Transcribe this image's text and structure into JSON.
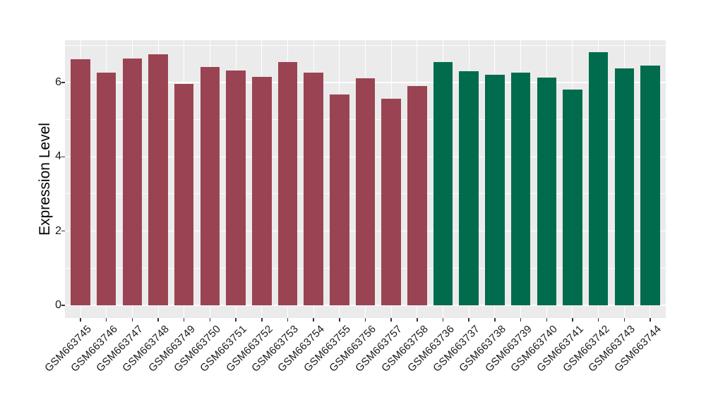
{
  "chart_data": {
    "type": "bar",
    "title": "",
    "ylabel": "Expression Level",
    "xlabel": "",
    "categories": [
      "GSM663745",
      "GSM663746",
      "GSM663747",
      "GSM663748",
      "GSM663749",
      "GSM663750",
      "GSM663751",
      "GSM663752",
      "GSM663753",
      "GSM663754",
      "GSM663755",
      "GSM663756",
      "GSM663757",
      "GSM663758",
      "GSM663736",
      "GSM663737",
      "GSM663738",
      "GSM663739",
      "GSM663740",
      "GSM663741",
      "GSM663742",
      "GSM663743",
      "GSM663744"
    ],
    "values": [
      6.62,
      6.27,
      6.64,
      6.76,
      5.97,
      6.41,
      6.33,
      6.16,
      6.55,
      6.27,
      5.67,
      6.12,
      5.56,
      5.9,
      6.56,
      6.3,
      6.21,
      6.26,
      6.13,
      5.81,
      6.82,
      6.38,
      6.46
    ],
    "groups": [
      "A",
      "A",
      "A",
      "A",
      "A",
      "A",
      "A",
      "A",
      "A",
      "A",
      "A",
      "A",
      "A",
      "A",
      "B",
      "B",
      "B",
      "B",
      "B",
      "B",
      "B",
      "B",
      "B"
    ],
    "group_colors": {
      "A": "#9A4453",
      "B": "#016B4E"
    },
    "yticks": [
      0,
      2,
      4,
      6
    ],
    "minor_yticks": [
      1,
      3,
      5,
      7
    ],
    "ylim": [
      -0.35,
      7.15
    ],
    "grid": "major+minor",
    "legend_position": "none",
    "panel_background": "#EBEBEB",
    "grid_color": "#FFFFFF",
    "axis_text_color": "#1a1a1a",
    "tick_mark_color": "#333333"
  }
}
